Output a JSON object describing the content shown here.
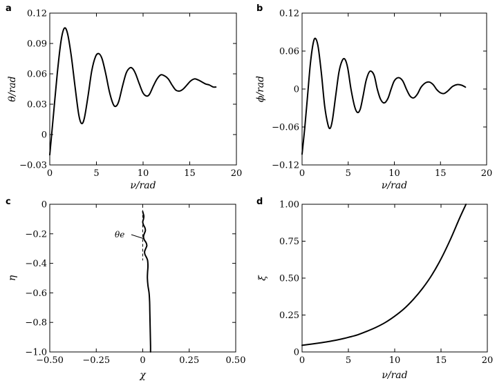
{
  "chart_data": [
    {
      "panel": "a",
      "type": "line",
      "xlabel": "ν/rad",
      "ylabel": "θ/rad",
      "xlim": [
        0,
        20
      ],
      "ylim": [
        -0.03,
        0.12
      ],
      "xticks": [
        0,
        5,
        10,
        15,
        20
      ],
      "xtick_labels": [
        "0",
        "5",
        "10",
        "15",
        "20"
      ],
      "yticks": [
        -0.03,
        0,
        0.03,
        0.06,
        0.09,
        0.12
      ],
      "ytick_labels": [
        "−0.03",
        "0",
        "0.03",
        "0.06",
        "0.09",
        "0.12"
      ],
      "series": [
        {
          "name": "theta",
          "x": [
            0,
            0.4,
            0.8,
            1.2,
            1.55,
            1.9,
            2.3,
            2.7,
            3.1,
            3.4,
            3.7,
            4.1,
            4.5,
            4.9,
            5.25,
            5.6,
            6.0,
            6.4,
            6.8,
            7.1,
            7.4,
            7.8,
            8.2,
            8.6,
            8.9,
            9.2,
            9.6,
            10.0,
            10.4,
            10.7,
            11.1,
            11.5,
            11.9,
            12.3,
            12.7,
            13.1,
            13.5,
            13.9,
            14.3,
            14.7,
            15.1,
            15.5,
            15.9,
            16.3,
            16.7,
            17.1,
            17.5,
            17.8
          ],
          "y": [
            -0.02,
            0.02,
            0.06,
            0.092,
            0.105,
            0.1,
            0.078,
            0.048,
            0.02,
            0.011,
            0.016,
            0.038,
            0.063,
            0.077,
            0.08,
            0.075,
            0.06,
            0.042,
            0.03,
            0.028,
            0.033,
            0.048,
            0.061,
            0.066,
            0.065,
            0.06,
            0.05,
            0.041,
            0.038,
            0.04,
            0.048,
            0.055,
            0.059,
            0.058,
            0.055,
            0.049,
            0.044,
            0.043,
            0.045,
            0.049,
            0.053,
            0.055,
            0.054,
            0.052,
            0.05,
            0.049,
            0.047,
            0.047
          ]
        }
      ]
    },
    {
      "panel": "b",
      "type": "line",
      "xlabel": "ν/rad",
      "ylabel": "ϕ/rad",
      "xlim": [
        0,
        20
      ],
      "ylim": [
        -0.12,
        0.12
      ],
      "xticks": [
        0,
        5,
        10,
        15,
        20
      ],
      "xtick_labels": [
        "0",
        "5",
        "10",
        "15",
        "20"
      ],
      "yticks": [
        -0.12,
        -0.06,
        0,
        0.06,
        0.12
      ],
      "ytick_labels": [
        "−0.12",
        "−0.06",
        "0",
        "0.06",
        "0.12"
      ],
      "series": [
        {
          "name": "phi",
          "x": [
            0,
            0.3,
            0.6,
            0.9,
            1.2,
            1.45,
            1.75,
            2.1,
            2.45,
            2.8,
            3.05,
            3.3,
            3.65,
            4.0,
            4.35,
            4.65,
            4.95,
            5.3,
            5.7,
            6.0,
            6.3,
            6.6,
            6.95,
            7.35,
            7.8,
            8.15,
            8.5,
            8.9,
            9.3,
            9.65,
            10.0,
            10.45,
            10.9,
            11.3,
            11.7,
            12.1,
            12.5,
            12.9,
            13.4,
            13.8,
            14.2,
            14.6,
            15.0,
            15.4,
            15.8,
            16.3,
            16.8,
            17.3,
            17.7
          ],
          "y": [
            -0.103,
            -0.06,
            -0.01,
            0.04,
            0.072,
            0.08,
            0.066,
            0.024,
            -0.027,
            -0.056,
            -0.062,
            -0.048,
            -0.01,
            0.027,
            0.045,
            0.047,
            0.033,
            0.0,
            -0.028,
            -0.037,
            -0.032,
            -0.012,
            0.014,
            0.028,
            0.022,
            0.0,
            -0.016,
            -0.022,
            -0.015,
            0.0,
            0.013,
            0.018,
            0.013,
            0.0,
            -0.011,
            -0.014,
            -0.008,
            0.003,
            0.01,
            0.011,
            0.007,
            -0.001,
            -0.006,
            -0.007,
            -0.003,
            0.004,
            0.007,
            0.006,
            0.003
          ]
        }
      ]
    },
    {
      "panel": "c",
      "type": "line",
      "xlabel": "χ",
      "ylabel": "η",
      "xlim": [
        -0.5,
        0.5
      ],
      "ylim": [
        -1.0,
        0.0
      ],
      "xticks": [
        -0.5,
        -0.25,
        0,
        0.25,
        0.5
      ],
      "xtick_labels": [
        "−0.50",
        "−0.25",
        "0",
        "0.25",
        "0.50"
      ],
      "yticks": [
        -1.0,
        -0.8,
        -0.6,
        -0.4,
        -0.2,
        0
      ],
      "ytick_labels": [
        "−1.0",
        "−0.8",
        "−0.6",
        "−0.4",
        "−0.2",
        "0"
      ],
      "annotation": "θe",
      "reference_line": {
        "x": 0,
        "y_from": -0.04,
        "y_to": -0.38
      },
      "series": [
        {
          "name": "trajectory",
          "x": [
            0.0,
            0.002,
            0.006,
            0.004,
            0.0,
            0.004,
            0.012,
            0.014,
            0.008,
            0.004,
            0.008,
            0.018,
            0.022,
            0.016,
            0.01,
            0.012,
            0.02,
            0.026,
            0.028,
            0.026,
            0.025,
            0.028,
            0.034,
            0.037,
            0.038,
            0.039,
            0.04,
            0.041,
            0.042,
            0.042
          ],
          "y": [
            -0.05,
            -0.06,
            -0.08,
            -0.1,
            -0.12,
            -0.14,
            -0.16,
            -0.18,
            -0.2,
            -0.22,
            -0.24,
            -0.26,
            -0.28,
            -0.3,
            -0.32,
            -0.34,
            -0.36,
            -0.38,
            -0.42,
            -0.46,
            -0.5,
            -0.55,
            -0.6,
            -0.66,
            -0.72,
            -0.78,
            -0.84,
            -0.9,
            -0.96,
            -1.0
          ]
        }
      ]
    },
    {
      "panel": "d",
      "type": "line",
      "xlabel": "ν/rad",
      "ylabel": "ξ",
      "xlim": [
        0,
        20
      ],
      "ylim": [
        0,
        1.0
      ],
      "xticks": [
        0,
        5,
        10,
        15,
        20
      ],
      "xtick_labels": [
        "0",
        "5",
        "10",
        "15",
        "20"
      ],
      "yticks": [
        0,
        0.25,
        0.5,
        0.75,
        1.0
      ],
      "ytick_labels": [
        "0",
        "0.25",
        "0.50",
        "0.75",
        "1.00"
      ],
      "series": [
        {
          "name": "xi",
          "x": [
            0,
            1,
            2,
            3,
            4,
            5,
            6,
            7,
            8,
            9,
            10,
            11,
            12,
            13,
            14,
            15,
            16,
            17,
            17.7
          ],
          "y": [
            0.045,
            0.053,
            0.062,
            0.072,
            0.084,
            0.099,
            0.116,
            0.14,
            0.167,
            0.2,
            0.242,
            0.292,
            0.355,
            0.43,
            0.52,
            0.63,
            0.76,
            0.905,
            1.0
          ]
        }
      ]
    }
  ]
}
